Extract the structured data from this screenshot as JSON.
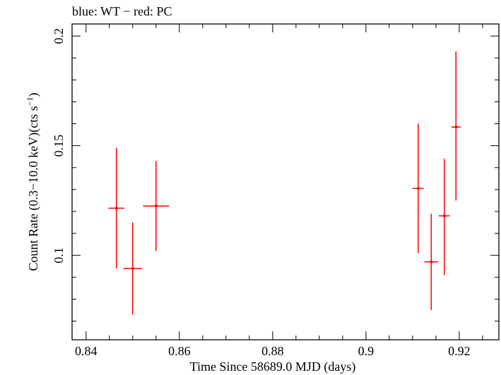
{
  "chart_data": {
    "type": "scatter",
    "title": "blue: WT − red: PC",
    "xlabel": "Time Since 58689.0 MJD (days)",
    "ylabel_parts": {
      "main": "Count Rate (0.3−10.0 keV)(cts s",
      "sup": "−1",
      "close": ")"
    },
    "xlim": [
      0.837,
      0.9285
    ],
    "ylim": [
      0.0615,
      0.2055
    ],
    "x_ticks": [
      0.84,
      0.86,
      0.88,
      0.9,
      0.92
    ],
    "x_tick_labels": [
      "0.84",
      "0.86",
      "0.88",
      "0.9",
      "0.92"
    ],
    "y_ticks": [
      0.1,
      0.15,
      0.2
    ],
    "y_tick_labels": [
      "0.1",
      "0.15",
      "0.2"
    ],
    "grid": false,
    "series": [
      {
        "color": "#ff0000",
        "points": [
          {
            "x": 0.8465,
            "y": 0.1215,
            "xerr": 0.0017,
            "ylo": 0.094,
            "yhi": 0.149
          },
          {
            "x": 0.85,
            "y": 0.094,
            "xerr": 0.002,
            "ylo": 0.073,
            "yhi": 0.115
          },
          {
            "x": 0.855,
            "y": 0.1225,
            "xerr": 0.0028,
            "ylo": 0.102,
            "yhi": 0.143
          },
          {
            "x": 0.9112,
            "y": 0.1305,
            "xerr": 0.0012,
            "ylo": 0.101,
            "yhi": 0.16
          },
          {
            "x": 0.914,
            "y": 0.097,
            "xerr": 0.0015,
            "ylo": 0.075,
            "yhi": 0.119
          },
          {
            "x": 0.9168,
            "y": 0.118,
            "xerr": 0.0012,
            "ylo": 0.091,
            "yhi": 0.144
          },
          {
            "x": 0.9193,
            "y": 0.1585,
            "xerr": 0.001,
            "ylo": 0.125,
            "yhi": 0.193
          }
        ]
      }
    ]
  }
}
